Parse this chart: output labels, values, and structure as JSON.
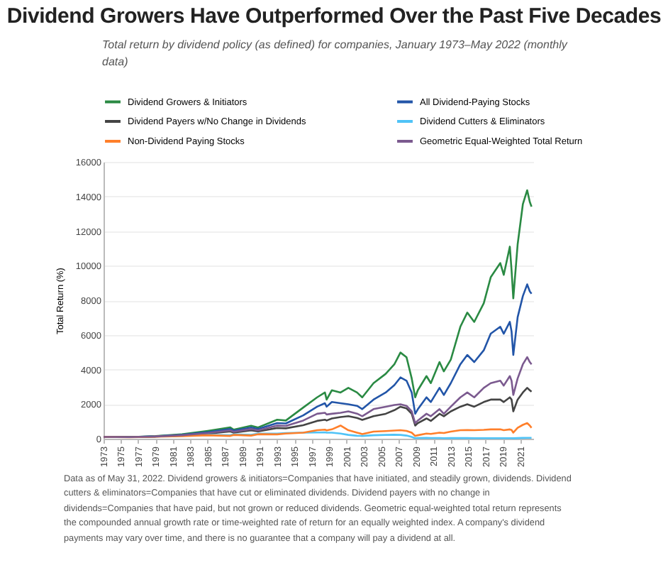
{
  "chart_data": {
    "type": "line",
    "title": "Dividend Growers Have Outperformed Over the Past Five Decades",
    "subtitle": "Total return by dividend policy (as defined) for companies, January 1973–May 2022 (monthly data)",
    "ylabel": "Total Return (%)",
    "x": [
      1973,
      1976,
      1979,
      1982,
      1985,
      1987.6,
      1988,
      1990,
      1990.8,
      1993,
      1994,
      1996.0,
      1997.6,
      1998.5,
      1998.7,
      1999.3,
      2000.3,
      2001.2,
      2002.2,
      2002.8,
      2004.1,
      2005.5,
      2006.5,
      2007.2,
      2007.9,
      2008.5,
      2008.9,
      2009.2,
      2010.2,
      2010.7,
      2011.7,
      2012.2,
      2013.0,
      2014.1,
      2014.9,
      2015.7,
      2016.8,
      2017.6,
      2018.7,
      2019.1,
      2019.8,
      2020.0,
      2020.2,
      2020.7,
      2021.3,
      2021.8,
      2022.1,
      2022.3
    ],
    "series": [
      {
        "name": "Dividend Growers & Initiators",
        "color": "#2a8a43",
        "values": [
          100,
          90,
          150,
          250,
          450,
          650,
          520,
          750,
          650,
          1100,
          1050,
          1800,
          2390,
          2670,
          2260,
          2800,
          2670,
          2940,
          2670,
          2390,
          3210,
          3750,
          4300,
          4980,
          4710,
          3480,
          2390,
          2800,
          3620,
          3210,
          4430,
          3890,
          4570,
          6470,
          7290,
          6750,
          7830,
          9330,
          10150,
          9470,
          11100,
          9740,
          8110,
          11230,
          13550,
          14360,
          13680,
          13410
        ]
      },
      {
        "name": "All Dividend-Paying Stocks",
        "color": "#2255a8",
        "values": [
          100,
          95,
          140,
          220,
          380,
          560,
          460,
          650,
          560,
          900,
          880,
          1350,
          1850,
          2050,
          1850,
          2120,
          2050,
          1990,
          1900,
          1710,
          2260,
          2670,
          3100,
          3540,
          3350,
          2670,
          1440,
          1700,
          2390,
          2120,
          2940,
          2530,
          3210,
          4300,
          4840,
          4430,
          5110,
          6070,
          6470,
          6070,
          6750,
          6200,
          4840,
          7020,
          8240,
          8920,
          8510,
          8380
        ]
      },
      {
        "name": "Dividend Payers w/No Change in Dividends",
        "color": "#444444",
        "values": [
          100,
          95,
          120,
          180,
          290,
          420,
          350,
          480,
          420,
          620,
          600,
          780,
          1030,
          1100,
          1050,
          1170,
          1250,
          1300,
          1200,
          1090,
          1300,
          1440,
          1650,
          1850,
          1750,
          1440,
          760,
          900,
          1170,
          1030,
          1440,
          1300,
          1580,
          1850,
          1990,
          1850,
          2120,
          2260,
          2260,
          2120,
          2390,
          2260,
          1580,
          2260,
          2670,
          2940,
          2800,
          2720
        ]
      },
      {
        "name": "Dividend Cutters & Eliminators",
        "color": "#4fc3f7",
        "values": [
          null,
          null,
          null,
          170,
          220,
          200,
          250,
          220,
          300,
          300,
          330,
          350,
          360,
          370,
          350,
          350,
          300,
          220,
          170,
          160,
          200,
          220,
          230,
          220,
          180,
          100,
          30,
          40,
          50,
          40,
          40,
          30,
          35,
          35,
          35,
          30,
          30,
          30,
          30,
          30,
          30,
          30,
          25,
          35,
          45,
          50,
          50,
          50
        ]
      },
      {
        "name": "Non-Dividend Paying Stocks",
        "color": "#ff7f2a",
        "values": [
          100,
          80,
          120,
          150,
          200,
          160,
          220,
          180,
          260,
          250,
          300,
          350,
          490,
          520,
          480,
          540,
          760,
          490,
          350,
          270,
          410,
          440,
          470,
          490,
          450,
          350,
          160,
          200,
          300,
          280,
          350,
          330,
          410,
          490,
          500,
          490,
          510,
          540,
          540,
          490,
          540,
          500,
          350,
          630,
          800,
          900,
          760,
          630
        ]
      },
      {
        "name": "Geometric Equal-Weighted Total Return",
        "color": "#7b5a8f",
        "values": [
          100,
          95,
          130,
          200,
          330,
          480,
          400,
          560,
          480,
          760,
          740,
          1050,
          1440,
          1500,
          1400,
          1440,
          1500,
          1580,
          1450,
          1300,
          1710,
          1850,
          1950,
          1990,
          1900,
          1580,
          900,
          1050,
          1440,
          1300,
          1710,
          1440,
          1850,
          2390,
          2670,
          2390,
          2940,
          3210,
          3350,
          3070,
          3620,
          3350,
          2530,
          3480,
          4300,
          4710,
          4430,
          4300
        ]
      }
    ],
    "xlim": [
      1973,
      2022.5
    ],
    "xticks": [
      1973,
      1975,
      1977,
      1979,
      1981,
      1983,
      1985,
      1987,
      1989,
      1991,
      1993,
      1995,
      1997,
      1999,
      2001,
      2003,
      2005,
      2007,
      2009,
      2011,
      2013,
      2015,
      2017,
      2019,
      2021
    ],
    "ylim": [
      0,
      16000
    ],
    "yticks": [
      0,
      2000,
      4000,
      6000,
      8000,
      10000,
      12000,
      14000,
      16000
    ],
    "grid": "y",
    "legend": "top",
    "annotations": [
      "Data as of May 31, 2022. Dividend growers & initiators=Companies that have initiated, and steadily grown, dividends. Dividend cutters & eliminators=Companies that have cut or eliminated dividends. Dividend payers with no change in dividends=Companies that have paid, but not grown or reduced dividends. Geometric equal-weighted total return represents the compounded annual growth rate or time-weighted rate of return for an equally weighted index.  A company's dividend payments may vary over time, and there is no guarantee that a company will pay a dividend at all."
    ]
  }
}
